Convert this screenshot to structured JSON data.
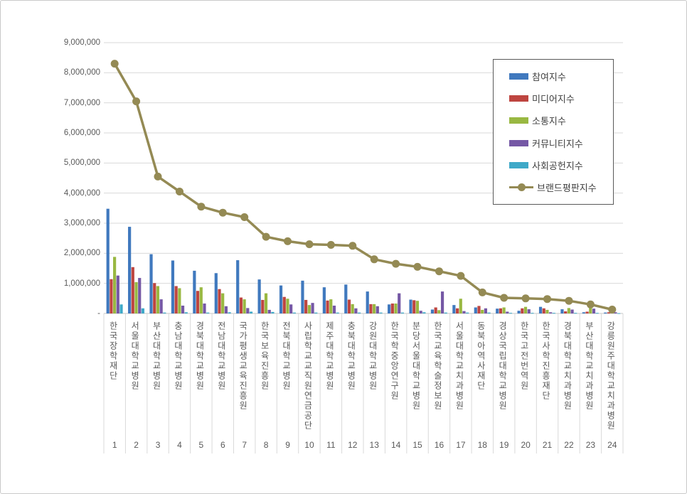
{
  "chart_data": {
    "type": "bar",
    "title": "",
    "xlabel": "",
    "ylabel": "",
    "ylim": [
      0,
      9000000
    ],
    "grid": true,
    "legend_position": "top-right",
    "categories": [
      "한국장학재단",
      "서울대학교병원",
      "부산대학교병원",
      "충남대학교병원",
      "경북대학교병원",
      "전남대학교병원",
      "국가평생교육진흥원",
      "한국보육진흥원",
      "전북대학교병원",
      "사립학교교직원연금공단",
      "제주대학교병원",
      "충북대학교병원",
      "강원대학교병원",
      "한국학중앙연구원",
      "분당서울대학교병원",
      "한국교육학술정보원",
      "서울대학교치과병원",
      "동북아역사재단",
      "경상국립대학교병원",
      "한국고전번역원",
      "한국사학진흥재단",
      "경북대학교치과병원",
      "부산대학교치과병원",
      "강릉원주대학교치과병원"
    ],
    "ranks": [
      "1",
      "2",
      "3",
      "4",
      "5",
      "6",
      "7",
      "8",
      "9",
      "10",
      "11",
      "12",
      "13",
      "14",
      "15",
      "16",
      "17",
      "18",
      "19",
      "20",
      "21",
      "22",
      "23",
      "24"
    ],
    "yticks": [
      {
        "v": 9000000,
        "label": "9,000,000"
      },
      {
        "v": 8000000,
        "label": "8,000,000"
      },
      {
        "v": 7000000,
        "label": "7,000,000"
      },
      {
        "v": 6000000,
        "label": "6,000,000"
      },
      {
        "v": 5000000,
        "label": "5,000,000"
      },
      {
        "v": 4000000,
        "label": "4,000,000"
      },
      {
        "v": 3000000,
        "label": "3,000,000"
      },
      {
        "v": 2000000,
        "label": "2,000,000"
      },
      {
        "v": 1000000,
        "label": "1,000,000"
      },
      {
        "v": 0,
        "label": "-"
      }
    ],
    "series": [
      {
        "name": "참여지수",
        "kind": "bar",
        "color": "#4079BE",
        "values": [
          3480000,
          2880000,
          1970000,
          1760000,
          1420000,
          1340000,
          1770000,
          1130000,
          930000,
          1090000,
          870000,
          960000,
          730000,
          300000,
          460000,
          130000,
          280000,
          200000,
          160000,
          90000,
          220000,
          140000,
          40000,
          30000
        ]
      },
      {
        "name": "미디어지수",
        "kind": "bar",
        "color": "#BE4540",
        "values": [
          1140000,
          1540000,
          1010000,
          910000,
          750000,
          810000,
          530000,
          450000,
          550000,
          450000,
          430000,
          460000,
          310000,
          330000,
          440000,
          200000,
          170000,
          250000,
          170000,
          170000,
          170000,
          70000,
          60000,
          40000
        ]
      },
      {
        "name": "소통지수",
        "kind": "bar",
        "color": "#99B842",
        "values": [
          1880000,
          1040000,
          910000,
          840000,
          870000,
          670000,
          470000,
          670000,
          490000,
          280000,
          470000,
          310000,
          310000,
          330000,
          420000,
          110000,
          490000,
          120000,
          200000,
          220000,
          120000,
          180000,
          220000,
          50000
        ]
      },
      {
        "name": "커뮤니티지수",
        "kind": "bar",
        "color": "#7558A5",
        "values": [
          1260000,
          1180000,
          470000,
          260000,
          330000,
          240000,
          180000,
          120000,
          300000,
          350000,
          260000,
          170000,
          240000,
          670000,
          90000,
          730000,
          80000,
          170000,
          60000,
          140000,
          40000,
          130000,
          160000,
          40000
        ]
      },
      {
        "name": "사회공헌지수",
        "kind": "bar",
        "color": "#3FA9C8",
        "values": [
          300000,
          170000,
          30000,
          40000,
          30000,
          40000,
          60000,
          50000,
          30000,
          30000,
          30000,
          30000,
          30000,
          30000,
          40000,
          30000,
          30000,
          30000,
          20000,
          20000,
          20000,
          20000,
          20000,
          10000
        ]
      },
      {
        "name": "브랜드평판지수",
        "kind": "line",
        "color": "#948A54",
        "values": [
          8300000,
          7050000,
          4550000,
          4050000,
          3550000,
          3350000,
          3200000,
          2550000,
          2400000,
          2300000,
          2280000,
          2250000,
          1800000,
          1650000,
          1550000,
          1400000,
          1250000,
          700000,
          520000,
          500000,
          480000,
          420000,
          300000,
          130000
        ]
      }
    ]
  },
  "style_colors": {
    "gridline": "#D9D9D9",
    "axis_line": "#C6C6C6",
    "separator": "#D9D9D9",
    "axis_text": "#595959",
    "legend_text": "#404040",
    "legend_border": "#595959",
    "frame_border": "#C9C9C9"
  }
}
